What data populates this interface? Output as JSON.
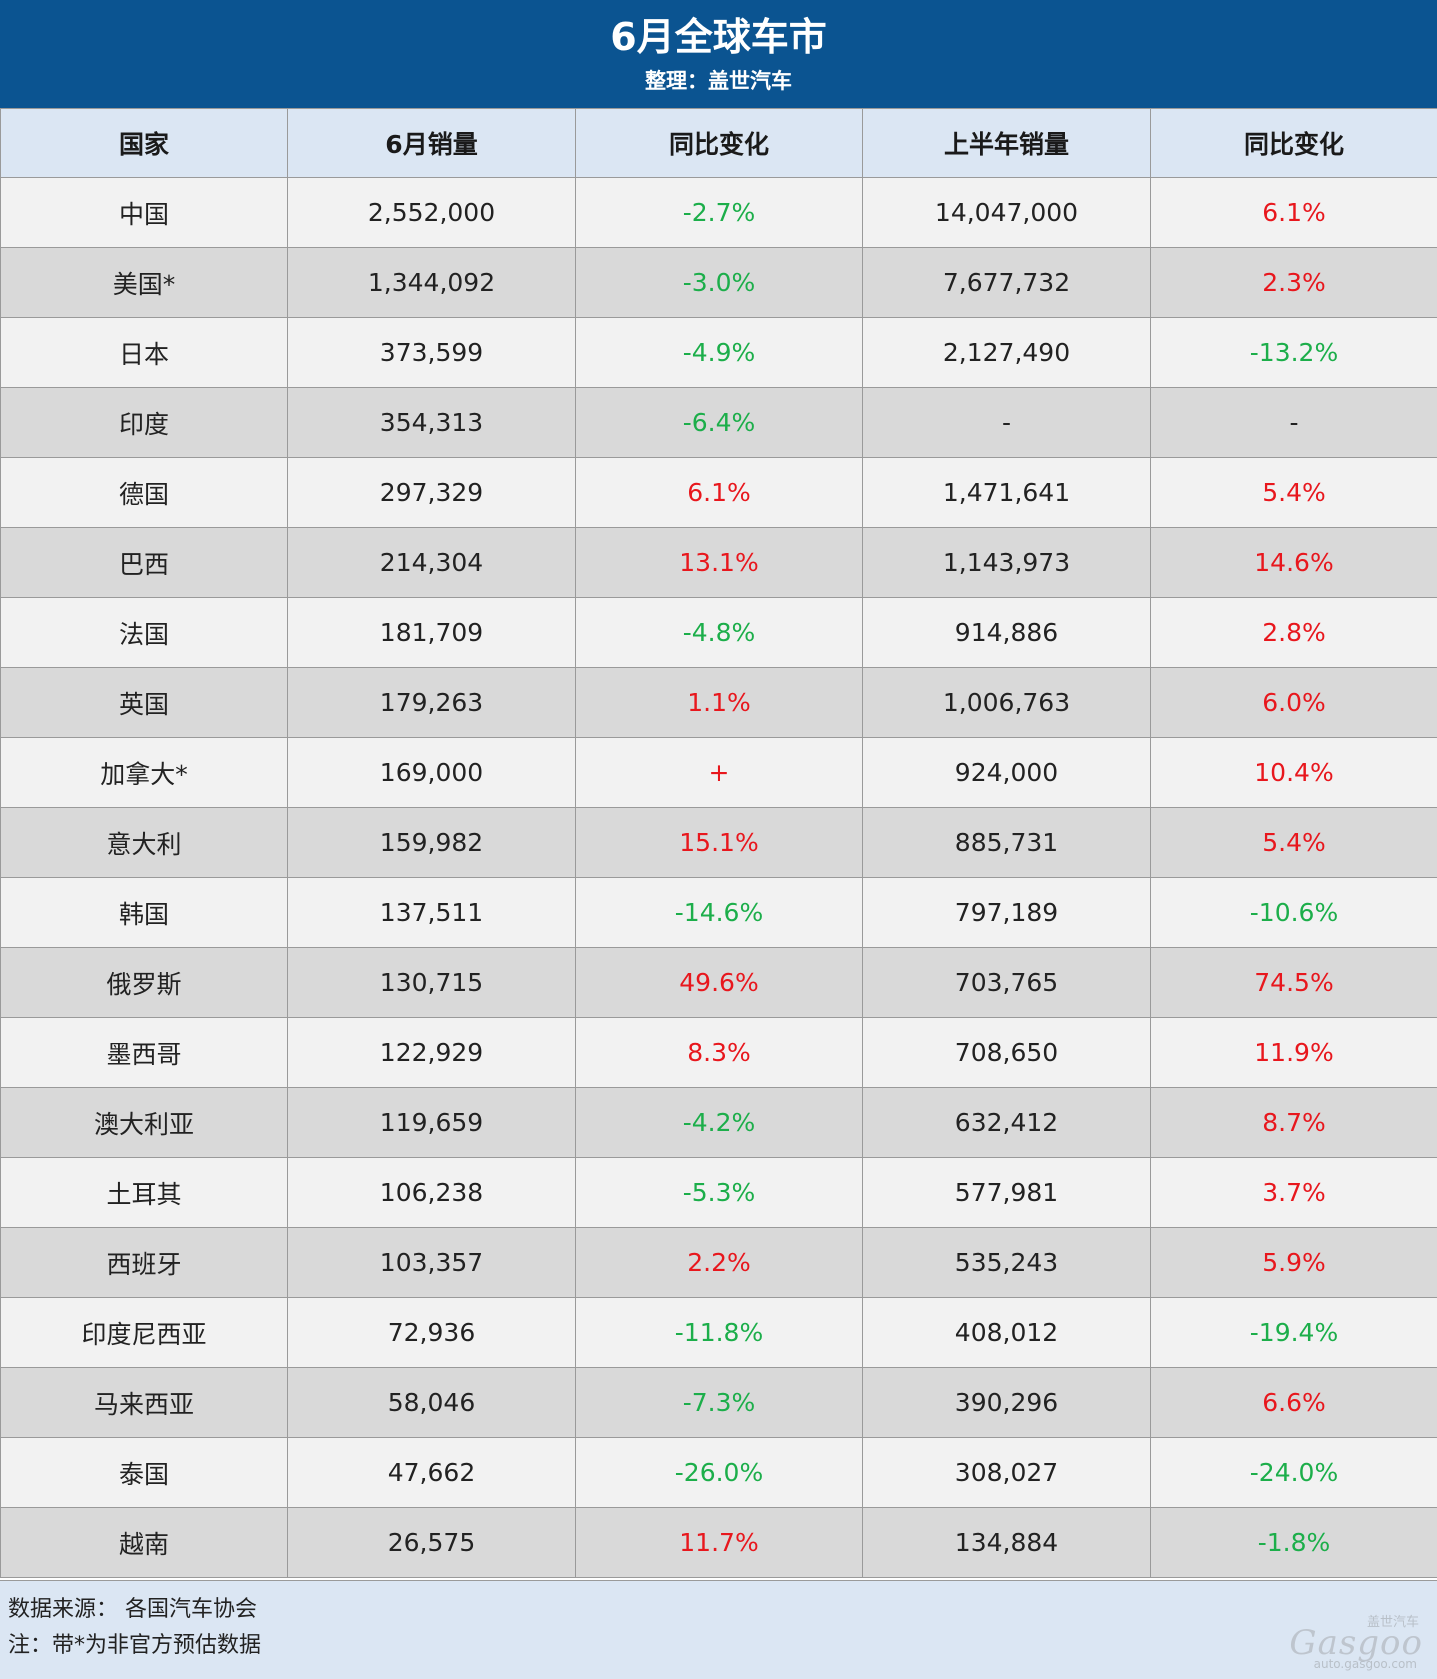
{
  "header": {
    "title": "6月全球车市",
    "subtitle": "整理：盖世汽车"
  },
  "columns": [
    "国家",
    "6月销量",
    "同比变化",
    "上半年销量",
    "同比变化"
  ],
  "rows": [
    {
      "country": "中国",
      "june": "2,552,000",
      "june_yoy": "-2.7%",
      "june_yoy_dir": "neg",
      "h1": "14,047,000",
      "h1_yoy": "6.1%",
      "h1_yoy_dir": "pos"
    },
    {
      "country": "美国*",
      "june": "1,344,092",
      "june_yoy": "-3.0%",
      "june_yoy_dir": "neg",
      "h1": "7,677,732",
      "h1_yoy": "2.3%",
      "h1_yoy_dir": "pos"
    },
    {
      "country": "日本",
      "june": "373,599",
      "june_yoy": "-4.9%",
      "june_yoy_dir": "neg",
      "h1": "2,127,490",
      "h1_yoy": "-13.2%",
      "h1_yoy_dir": "neg"
    },
    {
      "country": "印度",
      "june": "354,313",
      "june_yoy": "-6.4%",
      "june_yoy_dir": "neg",
      "h1": "-",
      "h1_yoy": "-",
      "h1_yoy_dir": "none"
    },
    {
      "country": "德国",
      "june": "297,329",
      "june_yoy": "6.1%",
      "june_yoy_dir": "pos",
      "h1": "1,471,641",
      "h1_yoy": "5.4%",
      "h1_yoy_dir": "pos"
    },
    {
      "country": "巴西",
      "june": "214,304",
      "june_yoy": "13.1%",
      "june_yoy_dir": "pos",
      "h1": "1,143,973",
      "h1_yoy": "14.6%",
      "h1_yoy_dir": "pos"
    },
    {
      "country": "法国",
      "june": "181,709",
      "june_yoy": "-4.8%",
      "june_yoy_dir": "neg",
      "h1": "914,886",
      "h1_yoy": "2.8%",
      "h1_yoy_dir": "pos"
    },
    {
      "country": "英国",
      "june": "179,263",
      "june_yoy": "1.1%",
      "june_yoy_dir": "pos",
      "h1": "1,006,763",
      "h1_yoy": "6.0%",
      "h1_yoy_dir": "pos"
    },
    {
      "country": "加拿大*",
      "june": "169,000",
      "june_yoy": "+",
      "june_yoy_dir": "pos",
      "h1": "924,000",
      "h1_yoy": "10.4%",
      "h1_yoy_dir": "pos"
    },
    {
      "country": "意大利",
      "june": "159,982",
      "june_yoy": "15.1%",
      "june_yoy_dir": "pos",
      "h1": "885,731",
      "h1_yoy": "5.4%",
      "h1_yoy_dir": "pos"
    },
    {
      "country": "韩国",
      "june": "137,511",
      "june_yoy": "-14.6%",
      "june_yoy_dir": "neg",
      "h1": "797,189",
      "h1_yoy": "-10.6%",
      "h1_yoy_dir": "neg"
    },
    {
      "country": "俄罗斯",
      "june": "130,715",
      "june_yoy": "49.6%",
      "june_yoy_dir": "pos",
      "h1": "703,765",
      "h1_yoy": "74.5%",
      "h1_yoy_dir": "pos"
    },
    {
      "country": "墨西哥",
      "june": "122,929",
      "june_yoy": "8.3%",
      "june_yoy_dir": "pos",
      "h1": "708,650",
      "h1_yoy": "11.9%",
      "h1_yoy_dir": "pos"
    },
    {
      "country": "澳大利亚",
      "june": "119,659",
      "june_yoy": "-4.2%",
      "june_yoy_dir": "neg",
      "h1": "632,412",
      "h1_yoy": "8.7%",
      "h1_yoy_dir": "pos"
    },
    {
      "country": "土耳其",
      "june": "106,238",
      "june_yoy": "-5.3%",
      "june_yoy_dir": "neg",
      "h1": "577,981",
      "h1_yoy": "3.7%",
      "h1_yoy_dir": "pos"
    },
    {
      "country": "西班牙",
      "june": "103,357",
      "june_yoy": "2.2%",
      "june_yoy_dir": "pos",
      "h1": "535,243",
      "h1_yoy": "5.9%",
      "h1_yoy_dir": "pos"
    },
    {
      "country": "印度尼西亚",
      "june": "72,936",
      "june_yoy": "-11.8%",
      "june_yoy_dir": "neg",
      "h1": "408,012",
      "h1_yoy": "-19.4%",
      "h1_yoy_dir": "neg"
    },
    {
      "country": "马来西亚",
      "june": "58,046",
      "june_yoy": "-7.3%",
      "june_yoy_dir": "neg",
      "h1": "390,296",
      "h1_yoy": "6.6%",
      "h1_yoy_dir": "pos"
    },
    {
      "country": "泰国",
      "june": "47,662",
      "june_yoy": "-26.0%",
      "june_yoy_dir": "neg",
      "h1": "308,027",
      "h1_yoy": "-24.0%",
      "h1_yoy_dir": "neg"
    },
    {
      "country": "越南",
      "june": "26,575",
      "june_yoy": "11.7%",
      "june_yoy_dir": "pos",
      "h1": "134,884",
      "h1_yoy": "-1.8%",
      "h1_yoy_dir": "neg"
    }
  ],
  "colors": {
    "header_bg": "#0b5491",
    "column_header_bg": "#dbe6f3",
    "row_light": "#f2f2f2",
    "row_dark": "#d9d9d9",
    "positive": "#e8171d",
    "negative": "#1cae4a"
  },
  "footer": {
    "source": "数据来源：  各国汽车协会",
    "note": "注：带*为非官方预估数据"
  },
  "watermark": {
    "cn": "盖世汽车",
    "logo": "Gasgoo",
    "url": "auto.gasgoo.com"
  }
}
